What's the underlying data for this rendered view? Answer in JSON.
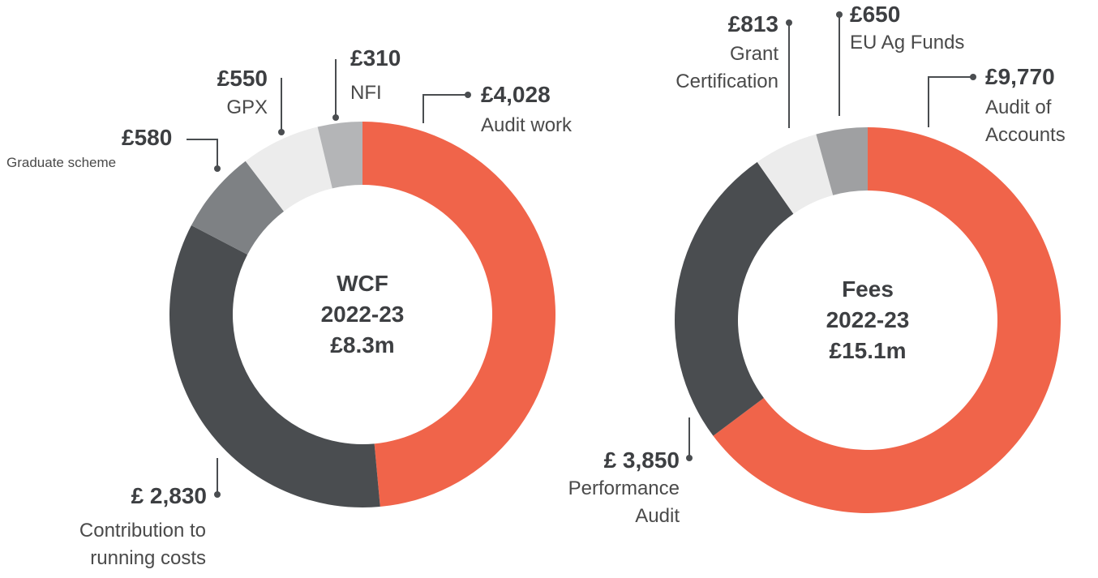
{
  "chart_data": [
    {
      "type": "pie",
      "title": "WCF",
      "subtitle": "2022-23",
      "total_label": "£8.3m",
      "categories": [
        "Audit work",
        "Contribution to running costs",
        "Graduate scheme",
        "GPX",
        "NFI"
      ],
      "values": [
        4028,
        2830,
        580,
        550,
        310
      ],
      "value_labels": [
        "£4,028",
        "£ 2,830",
        "£580",
        "£550",
        "£310"
      ],
      "colors": [
        "#f0644a",
        "#4a4d50",
        "#7e8184",
        "#ececec",
        "#b4b5b7"
      ]
    },
    {
      "type": "pie",
      "title": "Fees",
      "subtitle": "2022-23",
      "total_label": "£15.1m",
      "categories": [
        "Audit of Accounts",
        "Performance Audit",
        "Grant Certification",
        "EU Ag Funds"
      ],
      "values": [
        9770,
        3850,
        813,
        650
      ],
      "value_labels": [
        "£9,770",
        "£ 3,850",
        "£813",
        "£650"
      ],
      "colors": [
        "#f0644a",
        "#4a4d50",
        "#ececec",
        "#9fa0a2"
      ]
    }
  ]
}
